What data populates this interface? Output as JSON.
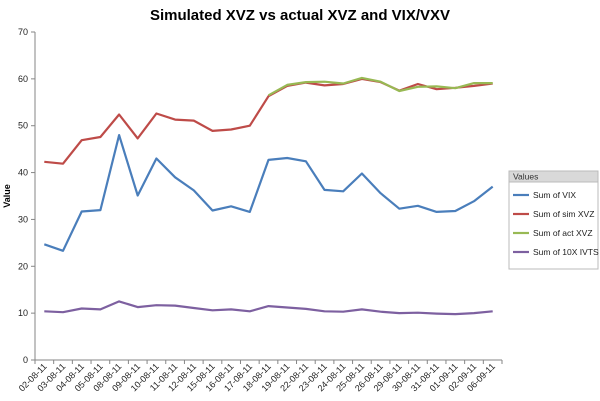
{
  "chart_data": {
    "type": "line",
    "title": "Simulated XVZ vs actual XVZ and VIX/VXV",
    "ylabel": "Value",
    "xlabel": "",
    "ylim": [
      0,
      70
    ],
    "yticks": [
      0,
      10,
      20,
      30,
      40,
      50,
      60,
      70
    ],
    "grid": false,
    "legend_position": "right",
    "legend_title": "Values",
    "categories": [
      "02-08-11",
      "03-08-11",
      "04-08-11",
      "05-08-11",
      "08-08-11",
      "09-08-11",
      "10-08-11",
      "11-08-11",
      "12-08-11",
      "15-08-11",
      "16-08-11",
      "17-08-11",
      "18-08-11",
      "19-08-11",
      "22-08-11",
      "23-08-11",
      "24-08-11",
      "25-08-11",
      "26-08-11",
      "29-08-11",
      "30-08-11",
      "31-08-11",
      "01-09-11",
      "02-09-11",
      "06-09-11"
    ],
    "series": [
      {
        "name": "Sum of VIX",
        "color": "#4a7ebb",
        "values": [
          24.7,
          23.3,
          31.7,
          32.0,
          48.0,
          35.1,
          43.0,
          39.0,
          36.2,
          31.9,
          32.8,
          31.6,
          42.7,
          43.1,
          42.4,
          36.3,
          36.0,
          39.8,
          35.6,
          32.3,
          32.9,
          31.6,
          31.8,
          33.9,
          37.0
        ]
      },
      {
        "name": "Sum of sim XVZ",
        "color": "#be4b48",
        "values": [
          42.3,
          41.9,
          46.9,
          47.6,
          52.4,
          47.3,
          52.6,
          51.3,
          51.1,
          48.9,
          49.2,
          50.0,
          56.3,
          58.5,
          59.2,
          58.6,
          58.9,
          60.0,
          59.3,
          57.5,
          58.9,
          57.8,
          58.1,
          58.5,
          59.0
        ]
      },
      {
        "name": "Sum of act XVZ",
        "color": "#98b954",
        "values": [
          null,
          null,
          null,
          null,
          null,
          null,
          null,
          null,
          null,
          null,
          null,
          null,
          56.5,
          58.7,
          59.3,
          59.4,
          59.0,
          60.2,
          59.4,
          57.4,
          58.3,
          58.4,
          58.0,
          59.1,
          59.1
        ]
      },
      {
        "name": "Sum of 10X IVTS",
        "color": "#7d60a0",
        "values": [
          10.4,
          10.2,
          11.0,
          10.8,
          12.5,
          11.3,
          11.7,
          11.6,
          11.1,
          10.6,
          10.8,
          10.4,
          11.5,
          11.2,
          10.9,
          10.4,
          10.3,
          10.8,
          10.3,
          10.0,
          10.1,
          9.9,
          9.8,
          10.0,
          10.4
        ]
      }
    ]
  }
}
